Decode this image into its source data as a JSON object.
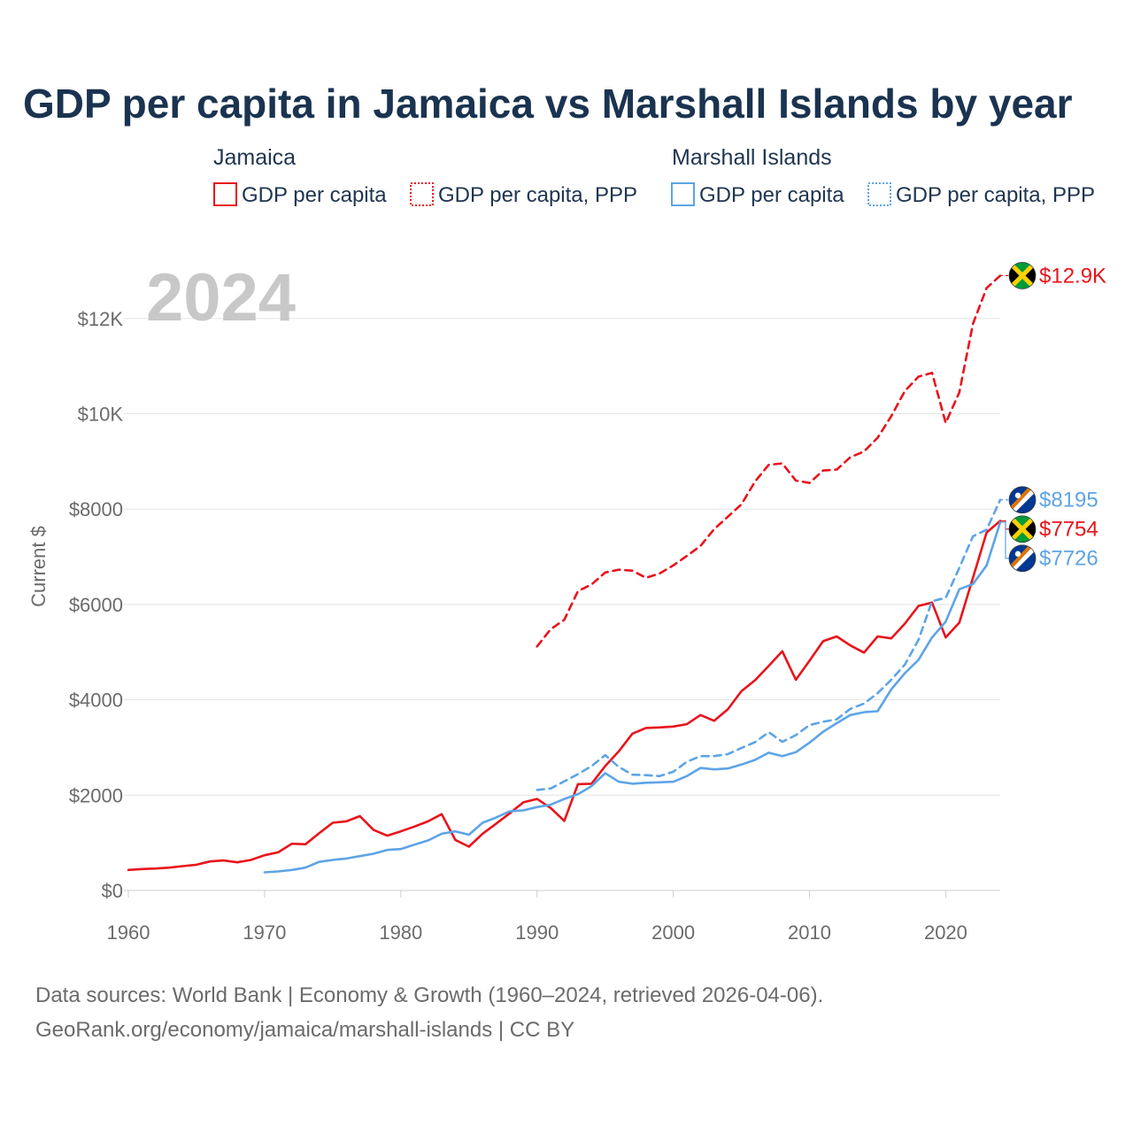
{
  "title": "GDP per capita in Jamaica vs Marshall Islands by year",
  "watermark_year": "2024",
  "legend": {
    "groups": [
      {
        "name": "Jamaica",
        "items": [
          "GDP per capita",
          "GDP per capita, PPP"
        ],
        "color": "#e8141c"
      },
      {
        "name": "Marshall Islands",
        "items": [
          "GDP per capita",
          "GDP per capita, PPP"
        ],
        "color": "#5da4e6"
      }
    ]
  },
  "footer": {
    "line1": "Data sources: World Bank | Economy & Growth (1960–2024, retrieved 2026-04-06).",
    "line2": "GeoRank.org/economy/jamaica/marshall-islands | CC BY"
  },
  "chart_data": {
    "type": "line",
    "title": "GDP per capita in Jamaica vs Marshall Islands by year",
    "xlabel": "",
    "ylabel": "Current $",
    "xlim": [
      1960,
      2024
    ],
    "ylim": [
      0,
      13000
    ],
    "x_ticks": [
      1960,
      1970,
      1980,
      1990,
      2000,
      2010,
      2020
    ],
    "x_tick_labels": [
      "1960",
      "1970",
      "1980",
      "1990",
      "2000",
      "2010",
      "2020"
    ],
    "y_ticks": [
      0,
      2000,
      4000,
      6000,
      8000,
      10000,
      12000
    ],
    "y_tick_labels": [
      "$0",
      "$2000",
      "$4000",
      "$6000",
      "$8000",
      "$10K",
      "$12K"
    ],
    "grid": true,
    "series": [
      {
        "name": "Jamaica GDP per capita",
        "color": "#e8141c",
        "dash": "solid",
        "end_label": "$7754",
        "flag": "jamaica",
        "x": [
          1960,
          1961,
          1962,
          1963,
          1964,
          1965,
          1966,
          1967,
          1968,
          1969,
          1970,
          1971,
          1972,
          1973,
          1974,
          1975,
          1976,
          1977,
          1978,
          1979,
          1980,
          1981,
          1982,
          1983,
          1984,
          1985,
          1986,
          1987,
          1988,
          1989,
          1990,
          1991,
          1992,
          1993,
          1994,
          1995,
          1996,
          1997,
          1998,
          1999,
          2000,
          2001,
          2002,
          2003,
          2004,
          2005,
          2006,
          2007,
          2008,
          2009,
          2010,
          2011,
          2012,
          2013,
          2014,
          2015,
          2016,
          2017,
          2018,
          2019,
          2020,
          2021,
          2022,
          2023,
          2024
        ],
        "values": [
          430,
          450,
          460,
          480,
          510,
          540,
          610,
          630,
          590,
          640,
          740,
          800,
          980,
          970,
          1200,
          1420,
          1450,
          1560,
          1270,
          1150,
          1240,
          1340,
          1450,
          1600,
          1060,
          920,
          1190,
          1400,
          1620,
          1850,
          1920,
          1730,
          1460,
          2230,
          2240,
          2610,
          2920,
          3290,
          3410,
          3420,
          3440,
          3490,
          3680,
          3560,
          3800,
          4180,
          4410,
          4710,
          5020,
          4420,
          4820,
          5230,
          5330,
          5140,
          4990,
          5330,
          5290,
          5600,
          5970,
          6040,
          5310,
          5620,
          6560,
          7510,
          7754
        ]
      },
      {
        "name": "Jamaica GDP per capita, PPP",
        "color": "#e8141c",
        "dash": "dashed",
        "end_label": "$12.9K",
        "flag": "jamaica",
        "x": [
          1990,
          1991,
          1992,
          1993,
          1994,
          1995,
          1996,
          1997,
          1998,
          1999,
          2000,
          2001,
          2002,
          2003,
          2004,
          2005,
          2006,
          2007,
          2008,
          2009,
          2010,
          2011,
          2012,
          2013,
          2014,
          2015,
          2016,
          2017,
          2018,
          2019,
          2020,
          2021,
          2022,
          2023,
          2024
        ],
        "values": [
          5120,
          5480,
          5680,
          6280,
          6420,
          6670,
          6730,
          6710,
          6560,
          6650,
          6820,
          7020,
          7230,
          7580,
          7840,
          8100,
          8580,
          8930,
          8960,
          8600,
          8550,
          8810,
          8830,
          9090,
          9210,
          9500,
          9950,
          10480,
          10780,
          10860,
          9810,
          10450,
          11890,
          12640,
          12900
        ]
      },
      {
        "name": "Marshall Islands GDP per capita",
        "color": "#5da4e6",
        "dash": "solid",
        "end_label": "$7726",
        "flag": "marshall",
        "x": [
          1970,
          1971,
          1972,
          1973,
          1974,
          1975,
          1976,
          1977,
          1978,
          1979,
          1980,
          1981,
          1982,
          1983,
          1984,
          1985,
          1986,
          1987,
          1988,
          1989,
          1990,
          1991,
          1992,
          1993,
          1994,
          1995,
          1996,
          1997,
          1998,
          1999,
          2000,
          2001,
          2002,
          2003,
          2004,
          2005,
          2006,
          2007,
          2008,
          2009,
          2010,
          2011,
          2012,
          2013,
          2014,
          2015,
          2016,
          2017,
          2018,
          2019,
          2020,
          2021,
          2022,
          2023,
          2024
        ],
        "values": [
          380,
          400,
          430,
          480,
          600,
          640,
          670,
          720,
          770,
          850,
          870,
          960,
          1050,
          1190,
          1240,
          1170,
          1420,
          1530,
          1660,
          1680,
          1750,
          1800,
          1920,
          2020,
          2190,
          2460,
          2280,
          2240,
          2260,
          2270,
          2280,
          2400,
          2570,
          2540,
          2560,
          2640,
          2740,
          2890,
          2820,
          2900,
          3100,
          3330,
          3510,
          3680,
          3740,
          3760,
          4220,
          4560,
          4840,
          5310,
          5640,
          6320,
          6430,
          6820,
          7726
        ]
      },
      {
        "name": "Marshall Islands GDP per capita, PPP",
        "color": "#5da4e6",
        "dash": "dashed",
        "end_label": "$8195",
        "flag": "marshall",
        "x": [
          1990,
          1991,
          1992,
          1993,
          1994,
          1995,
          1996,
          1997,
          1998,
          1999,
          2000,
          2001,
          2002,
          2003,
          2004,
          2005,
          2006,
          2007,
          2008,
          2009,
          2010,
          2011,
          2012,
          2013,
          2014,
          2015,
          2016,
          2017,
          2018,
          2019,
          2020,
          2021,
          2022,
          2023,
          2024
        ],
        "values": [
          2110,
          2140,
          2290,
          2440,
          2610,
          2840,
          2590,
          2430,
          2420,
          2400,
          2490,
          2700,
          2820,
          2820,
          2860,
          2990,
          3110,
          3320,
          3120,
          3260,
          3470,
          3540,
          3590,
          3810,
          3920,
          4140,
          4420,
          4740,
          5260,
          6070,
          6140,
          6770,
          7430,
          7570,
          8195
        ]
      }
    ]
  }
}
